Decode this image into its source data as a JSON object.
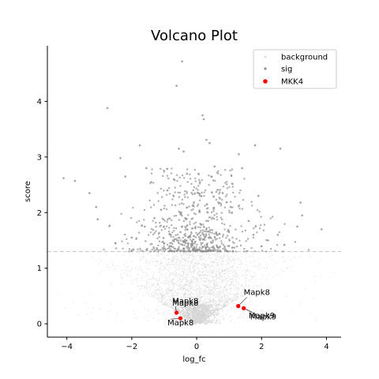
{
  "chart_data": {
    "type": "scatter",
    "title": "Volcano Plot",
    "xlabel": "log_fc",
    "ylabel": "score",
    "xlim": [
      -4.6,
      4.45
    ],
    "ylim": [
      -0.24,
      5.0
    ],
    "xticks": [
      -4,
      -2,
      0,
      2,
      4
    ],
    "yticks": [
      0,
      1,
      2,
      3,
      4
    ],
    "threshold_y": 1.3,
    "grid": false,
    "legend_position": "top-right",
    "colors": {
      "background": "#d3d3d3",
      "sig": "#8c8c8c",
      "highlight": "#ff0000",
      "threshold": "#cccccc"
    },
    "series": [
      {
        "name": "background",
        "description_points": "dense cloud of non-significant genes with score below 1.3"
      },
      {
        "name": "sig",
        "points": [
          [
            -0.45,
            4.72
          ],
          [
            -0.62,
            4.28
          ],
          [
            -2.75,
            3.88
          ],
          [
            0.18,
            3.75
          ],
          [
            0.22,
            3.68
          ],
          [
            -1.75,
            3.21
          ],
          [
            1.8,
            3.21
          ],
          [
            2.58,
            3.15
          ],
          [
            -0.55,
            3.15
          ],
          [
            0.3,
            3.31
          ],
          [
            0.4,
            3.25
          ],
          [
            1.3,
            3.05
          ],
          [
            0.55,
            2.83
          ],
          [
            -2.35,
            2.98
          ],
          [
            -0.4,
            3.1
          ],
          [
            -4.1,
            2.62
          ],
          [
            -3.75,
            2.57
          ],
          [
            -3.3,
            2.35
          ],
          [
            -3.1,
            2.1
          ],
          [
            -3.05,
            1.88
          ],
          [
            3.2,
            2.18
          ],
          [
            3.25,
            1.95
          ],
          [
            3.1,
            1.75
          ],
          [
            3.85,
            1.7
          ],
          [
            2.5,
            1.6
          ],
          [
            -2.2,
            2.65
          ],
          [
            -1.4,
            2.55
          ],
          [
            1.9,
            2.3
          ],
          [
            1.4,
            2.8
          ],
          [
            -1.55,
            2.8
          ],
          [
            -0.9,
            2.4
          ],
          [
            -0.7,
            2.6
          ],
          [
            -0.3,
            2.7
          ],
          [
            0.1,
            2.55
          ],
          [
            0.45,
            2.65
          ],
          [
            0.8,
            2.35
          ],
          [
            1.05,
            2.1
          ],
          [
            -1.1,
            2.05
          ],
          [
            -1.3,
            1.9
          ],
          [
            -1.6,
            1.75
          ],
          [
            1.6,
            1.85
          ],
          [
            1.75,
            1.6
          ],
          [
            -2.0,
            1.55
          ],
          [
            2.2,
            1.5
          ],
          [
            -2.5,
            1.45
          ],
          [
            2.7,
            1.42
          ],
          [
            -0.5,
            1.65
          ],
          [
            -0.45,
            1.75
          ],
          [
            -0.35,
            1.9
          ],
          [
            0.3,
            1.7
          ],
          [
            0.35,
            1.85
          ],
          [
            -0.6,
            1.5
          ],
          [
            0.5,
            1.5
          ],
          [
            -0.8,
            1.6
          ],
          [
            0.7,
            1.62
          ],
          [
            -1.0,
            1.45
          ],
          [
            1.0,
            1.4
          ],
          [
            -0.4,
            1.35
          ],
          [
            0.2,
            1.38
          ],
          [
            -0.25,
            1.55
          ]
        ]
      },
      {
        "name": "MKK4",
        "points": [
          [
            -0.62,
            0.2
          ],
          [
            -0.5,
            0.1
          ],
          [
            1.28,
            0.32
          ],
          [
            1.45,
            0.28
          ]
        ]
      }
    ],
    "annotations": [
      {
        "text": "Mapk8",
        "x": -0.62,
        "y": 0.2
      },
      {
        "text": "Mapk8",
        "x": -0.62,
        "y": 0.2
      },
      {
        "text": "Mapk8",
        "x": -0.5,
        "y": 0.1
      },
      {
        "text": "Mapk8",
        "x": 1.28,
        "y": 0.32
      },
      {
        "text": "Mapk9",
        "x": 1.45,
        "y": 0.28
      },
      {
        "text": "Mapk9",
        "x": 1.45,
        "y": 0.28
      }
    ]
  }
}
